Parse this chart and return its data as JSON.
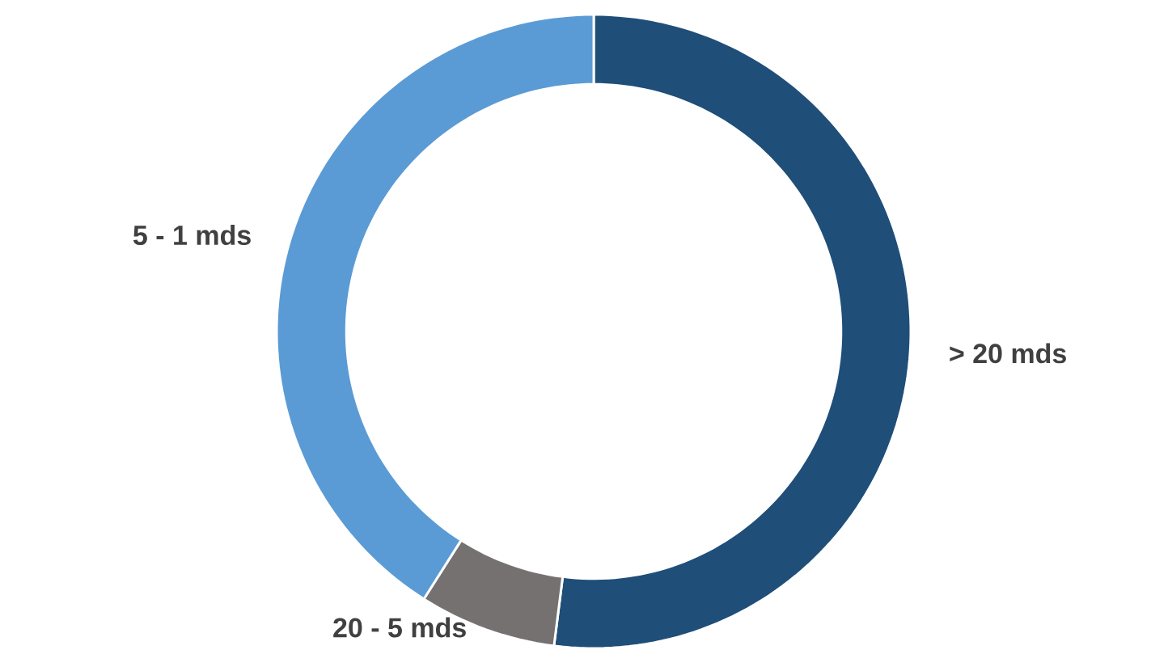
{
  "chart_data": {
    "type": "donut",
    "categories": [
      "> 20 mds",
      "20 - 5 mds",
      "5 - 1 mds"
    ],
    "values": [
      52,
      7,
      41
    ],
    "colors": [
      "#1f4e79",
      "#767171",
      "#5b9bd5"
    ]
  }
}
